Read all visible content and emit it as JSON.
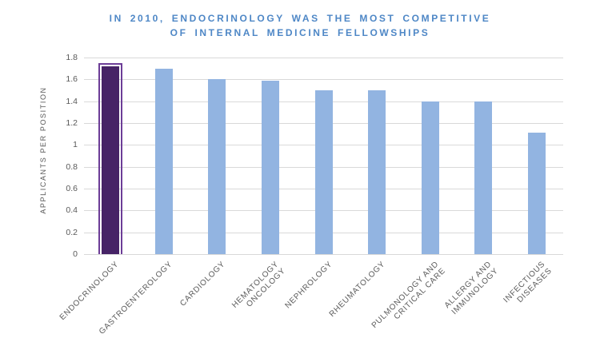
{
  "title": {
    "line1": "IN 2010, ENDOCRINOLOGY WAS THE MOST COMPETITIVE",
    "line2": "OF INTERNAL MEDICINE FELLOWSHIPS"
  },
  "chart_data": {
    "type": "bar",
    "title": "IN 2010, ENDOCRINOLOGY WAS THE MOST COMPETITIVE OF INTERNAL MEDICINE FELLOWSHIPS",
    "xlabel": "",
    "ylabel": "APPLICANTS PER POSITION",
    "ylim": [
      0,
      1.8
    ],
    "ytick_labels": [
      "0",
      "0.2",
      "0.4",
      "0.6",
      "0.8",
      "1",
      "1.2",
      "1.4",
      "1.6",
      "1.8"
    ],
    "ytick_values": [
      0,
      0.2,
      0.4,
      0.6,
      0.8,
      1.0,
      1.2,
      1.4,
      1.6,
      1.8
    ],
    "grid": true,
    "legend": false,
    "categories": [
      "ENDOCRINOLOGY",
      "GASTROENTEROLOGY",
      "CARDIOLOGY",
      "HEMATOLOGY ONCOLOGY",
      "NEPHROLOGY",
      "RHEUMATOLOGY",
      "PULMONOLOGY AND CRITICAL CARE",
      "ALLERGY AND IMMUNOLOGY",
      "INFECTIOUS DISEASES"
    ],
    "category_label_lines": [
      [
        "ENDOCRINOLOGY"
      ],
      [
        "GASTROENTEROLOGY"
      ],
      [
        "CARDIOLOGY"
      ],
      [
        "HEMATOLOGY",
        "ONCOLOGY"
      ],
      [
        "NEPHROLOGY"
      ],
      [
        "RHEUMATOLOGY"
      ],
      [
        "PULMONOLOGY AND",
        "CRITICAL CARE"
      ],
      [
        "ALLERGY AND",
        "IMMUNOLOGY"
      ],
      [
        "INFECTIOUS",
        "DISEASES"
      ]
    ],
    "values": [
      1.72,
      1.7,
      1.6,
      1.59,
      1.5,
      1.5,
      1.4,
      1.4,
      1.11
    ],
    "highlighted_index": 0,
    "highlighted_category": "ENDOCRINOLOGY",
    "colors": {
      "bar": "#92B4E1",
      "highlight_fill": "#462366",
      "highlight_border": "#6C3D97",
      "grid_line": "#D9D9D9",
      "axis_text": "#595959",
      "title_text": "#4E87C6"
    }
  }
}
